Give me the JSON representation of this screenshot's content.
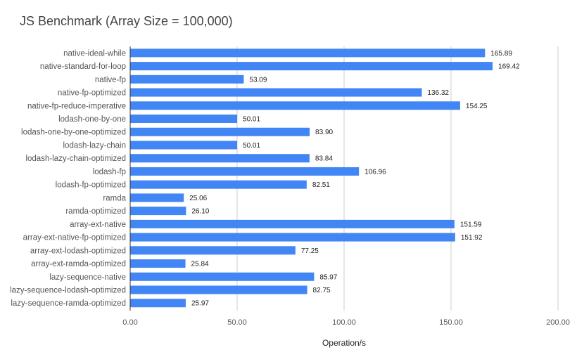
{
  "chart_data": {
    "type": "bar",
    "orientation": "horizontal",
    "title": "JS Benchmark (Array Size = 100,000)",
    "xlabel": "Operation/s",
    "ylabel": "",
    "xlim": [
      0,
      200
    ],
    "xticks": [
      "0.00",
      "50.00",
      "100.00",
      "150.00",
      "200.00"
    ],
    "grid": true,
    "legend": "none",
    "bar_color": "#4285f4",
    "categories": [
      "native-ideal-while",
      "native-standard-for-loop",
      "native-fp",
      "native-fp-optimized",
      "native-fp-reduce-imperative",
      "lodash-one-by-one",
      "lodash-one-by-one-optimized",
      "lodash-lazy-chain",
      "lodash-lazy-chain-optimized",
      "lodash-fp",
      "lodash-fp-optimized",
      "ramda",
      "ramda-optimized",
      "array-ext-native",
      "array-ext-native-fp-optimized",
      "array-ext-lodash-optimized",
      "array-ext-ramda-optimized",
      "lazy-sequence-native",
      "lazy-sequence-lodash-optimized",
      "lazy-sequence-ramda-optimized"
    ],
    "values": [
      165.89,
      169.42,
      53.09,
      136.32,
      154.25,
      50.01,
      83.9,
      50.01,
      83.84,
      106.96,
      82.51,
      25.06,
      26.1,
      151.59,
      151.92,
      77.25,
      25.84,
      85.97,
      82.75,
      25.97
    ],
    "data_labels": [
      "165.89",
      "169.42",
      "53.09",
      "136.32",
      "154.25",
      "50.01",
      "83.90",
      "50.01",
      "83.84",
      "106.96",
      "82.51",
      "25.06",
      "26.10",
      "151.59",
      "151.92",
      "77.25",
      "25.84",
      "85.97",
      "82.75",
      "25.97"
    ]
  }
}
